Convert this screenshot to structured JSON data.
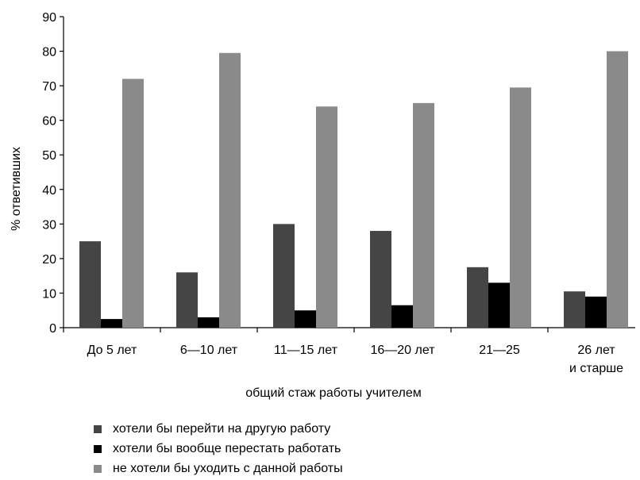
{
  "chart_data": {
    "type": "bar",
    "categories": [
      [
        "До 5 лет"
      ],
      [
        "6—10 лет"
      ],
      [
        "11—15 лет"
      ],
      [
        "16—20 лет"
      ],
      [
        "21—25"
      ],
      [
        "26 лет",
        "и старше"
      ]
    ],
    "series": [
      {
        "name": "хотели бы перейти на другую работу",
        "color": "#454545",
        "values": [
          25,
          16,
          30,
          28,
          17.5,
          10.5
        ]
      },
      {
        "name": "хотели бы вообще перестать работать",
        "color": "#000000",
        "values": [
          2.5,
          3,
          5,
          6.5,
          13,
          9
        ]
      },
      {
        "name": "не хотели бы уходить с данной работы",
        "color": "#8a8a8a",
        "values": [
          72,
          79.5,
          64,
          65,
          69.5,
          80
        ]
      }
    ],
    "xlabel": "общий стаж работы учителем",
    "ylabel": "% ответивших",
    "ylim": [
      0,
      90
    ],
    "yticks": [
      0,
      10,
      20,
      30,
      40,
      50,
      60,
      70,
      80,
      90
    ],
    "grid": false,
    "legend_position": "bottom-left"
  }
}
